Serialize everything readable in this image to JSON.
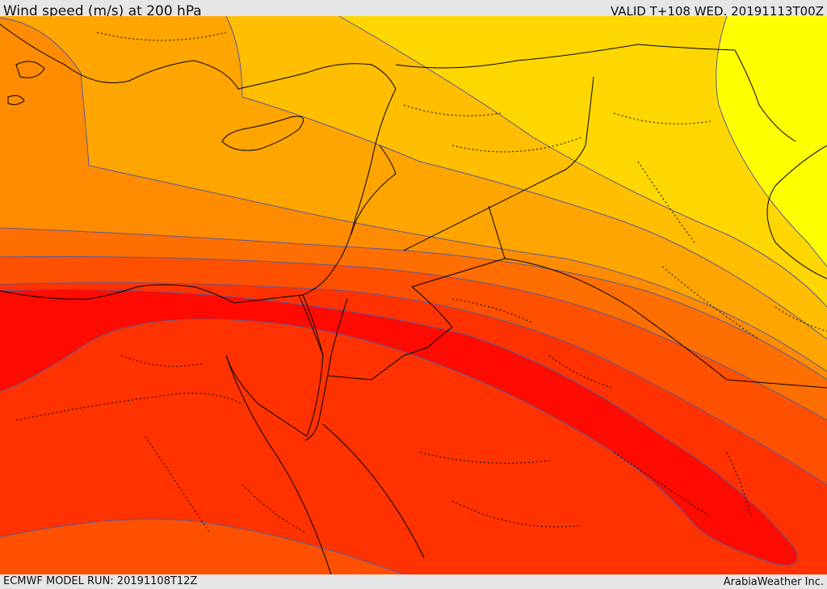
{
  "header": {
    "title": "Wind speed (m/s) at 200 hPa",
    "valid": "VALID T+108 WED. 20191113T00Z"
  },
  "footer": {
    "model_run": "ECMWF MODEL RUN: 20191108T12Z",
    "credit": "ArabiaWeather Inc."
  },
  "map": {
    "variable": "Wind speed at 200 hPa",
    "units": "m/s",
    "colors": {
      "weakest": "#ffff00",
      "weak": "#ffd700",
      "light": "#ffbe00",
      "moderate": "#ffa500",
      "fresh": "#ff8c00",
      "strong": "#ff6e00",
      "stronger": "#ff5000",
      "very_strong": "#ff3200",
      "jet_core": "#ff0a00",
      "contour_line": "#5a5a9a",
      "border_line": "#000000"
    },
    "features": [
      "wind-speed-contours",
      "coastlines",
      "international-borders",
      "internal-boundaries",
      "jet-core"
    ]
  }
}
